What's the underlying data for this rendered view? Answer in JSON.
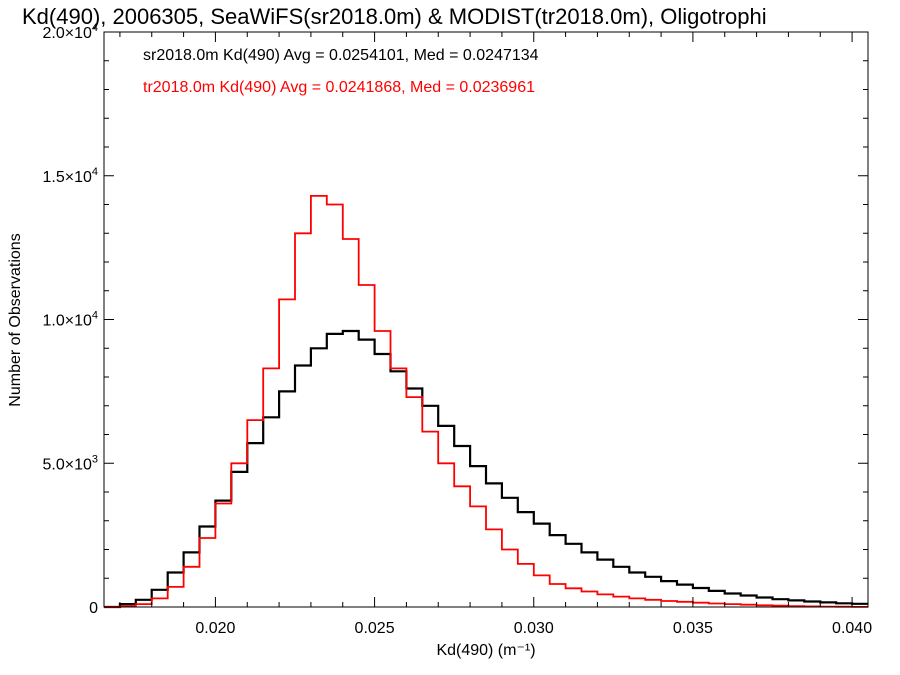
{
  "chart_data": {
    "type": "line",
    "step": true,
    "title": "Kd(490), 2006305, SeaWiFS(sr2018.0m) & MODIST(tr2018.0m), Oligotrophi",
    "xlabel": "Kd(490) (m⁻¹)",
    "ylabel": "Number of Observations",
    "xlim": [
      0.0165,
      0.0405
    ],
    "ylim": [
      0,
      20000
    ],
    "grid": false,
    "legend_position": "top-left",
    "x_ticks": [
      {
        "value": 0.02,
        "label": "0.020"
      },
      {
        "value": 0.025,
        "label": "0.025"
      },
      {
        "value": 0.03,
        "label": "0.030"
      },
      {
        "value": 0.035,
        "label": "0.035"
      },
      {
        "value": 0.04,
        "label": "0.040"
      }
    ],
    "y_ticks": [
      {
        "value": 0,
        "mant": "0",
        "exp": ""
      },
      {
        "value": 5000,
        "mant": "5.0×10",
        "exp": "3"
      },
      {
        "value": 10000,
        "mant": "1.0×10",
        "exp": "4"
      },
      {
        "value": 15000,
        "mant": "1.5×10",
        "exp": "4"
      },
      {
        "value": 20000,
        "mant": "2.0×10",
        "exp": "4"
      }
    ],
    "series": [
      {
        "name": "sr2018.0m Kd(490)",
        "legend_text": "sr2018.0m Kd(490) Avg = 0.0254101, Med = 0.0247134",
        "color": "#000000",
        "avg": 0.0254101,
        "median": 0.0247134,
        "x": [
          0.0165,
          0.017,
          0.0175,
          0.018,
          0.0185,
          0.019,
          0.0195,
          0.02,
          0.0205,
          0.021,
          0.0215,
          0.022,
          0.0225,
          0.023,
          0.0235,
          0.024,
          0.0245,
          0.025,
          0.0255,
          0.026,
          0.0265,
          0.027,
          0.0275,
          0.028,
          0.0285,
          0.029,
          0.0295,
          0.03,
          0.0305,
          0.031,
          0.0315,
          0.032,
          0.0325,
          0.033,
          0.0335,
          0.034,
          0.0345,
          0.035,
          0.0355,
          0.036,
          0.0365,
          0.037,
          0.0375,
          0.038,
          0.0385,
          0.039,
          0.0395,
          0.04,
          0.0405
        ],
        "values": [
          0,
          100,
          250,
          600,
          1200,
          1900,
          2800,
          3700,
          4700,
          5700,
          6600,
          7500,
          8400,
          9000,
          9500,
          9600,
          9300,
          8800,
          8200,
          7600,
          7000,
          6300,
          5600,
          4900,
          4300,
          3800,
          3300,
          2900,
          2500,
          2200,
          1900,
          1650,
          1400,
          1200,
          1050,
          900,
          780,
          660,
          560,
          470,
          400,
          330,
          270,
          230,
          190,
          160,
          130,
          110,
          90
        ]
      },
      {
        "name": "tr2018.0m Kd(490)",
        "legend_text": "tr2018.0m Kd(490) Avg = 0.0241868, Med = 0.0236961",
        "color": "#ff0000",
        "avg": 0.0241868,
        "median": 0.0236961,
        "x": [
          0.0165,
          0.017,
          0.0175,
          0.018,
          0.0185,
          0.019,
          0.0195,
          0.02,
          0.0205,
          0.021,
          0.0215,
          0.022,
          0.0225,
          0.023,
          0.0235,
          0.024,
          0.0245,
          0.025,
          0.0255,
          0.026,
          0.0265,
          0.027,
          0.0275,
          0.028,
          0.0285,
          0.029,
          0.0295,
          0.03,
          0.0305,
          0.031,
          0.0315,
          0.032,
          0.0325,
          0.033,
          0.0335,
          0.034,
          0.0345,
          0.035,
          0.0355,
          0.036,
          0.0365,
          0.037,
          0.0375,
          0.038,
          0.0385,
          0.039,
          0.0395,
          0.04,
          0.0405
        ],
        "values": [
          0,
          30,
          100,
          300,
          700,
          1400,
          2400,
          3600,
          5000,
          6500,
          8300,
          10700,
          13000,
          14300,
          14000,
          12800,
          11200,
          9600,
          8300,
          7300,
          6100,
          5000,
          4200,
          3500,
          2700,
          2000,
          1500,
          1100,
          800,
          650,
          540,
          440,
          360,
          300,
          250,
          210,
          180,
          150,
          120,
          100,
          80,
          60,
          45,
          30,
          20,
          15,
          10,
          5,
          3
        ]
      }
    ]
  }
}
